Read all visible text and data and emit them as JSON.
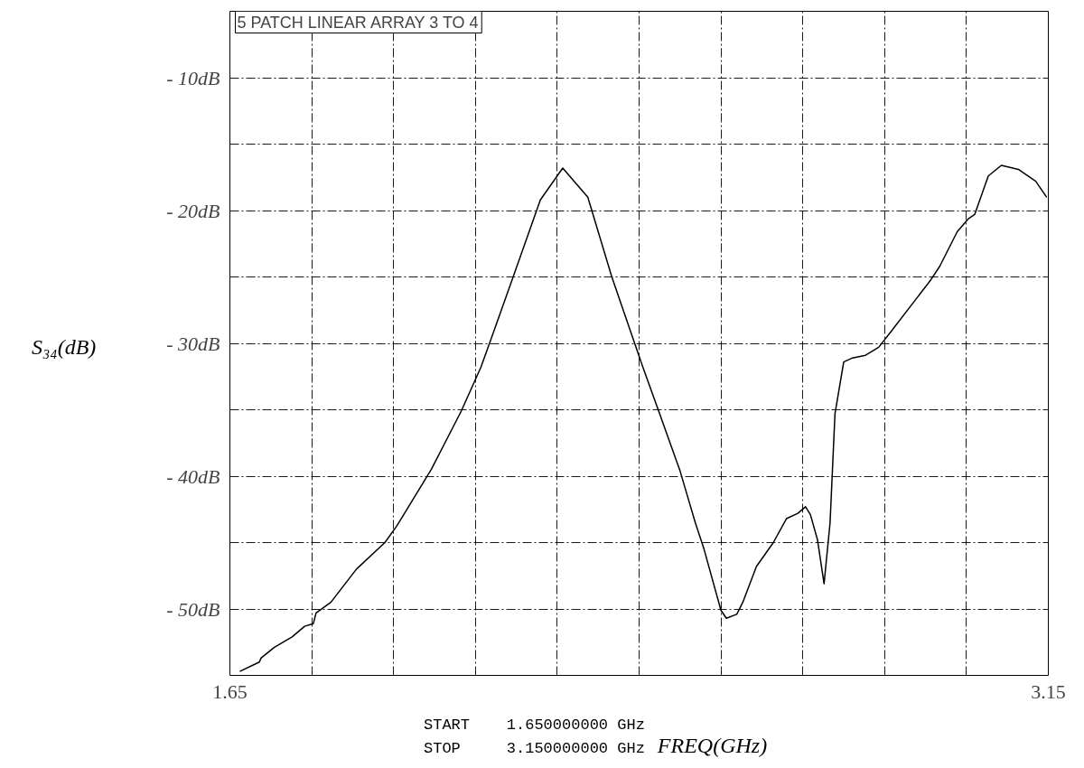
{
  "chart_data": {
    "type": "line",
    "title": "5 PATCH LINEAR ARRAY 3 TO 4",
    "xlabel": "FREQ(GHz)",
    "ylabel": "S₃₄(dB)",
    "annotations": [
      "START    1.650000000 GHz",
      "STOP     3.150000000 GHz"
    ],
    "xlim": [
      1.65,
      3.15
    ],
    "ylim": [
      -55,
      -5
    ],
    "xticks": [
      1.65,
      {
        "value": 1.8,
        "label": null
      },
      {
        "value": 1.95,
        "label": null
      },
      {
        "value": 2.1,
        "label": null
      },
      {
        "value": 2.25,
        "label": null
      },
      {
        "value": 2.4,
        "label": null
      },
      {
        "value": 2.55,
        "label": null
      },
      {
        "value": 2.7,
        "label": null
      },
      {
        "value": 2.85,
        "label": null
      },
      {
        "value": 3.0,
        "label": null
      },
      3.15
    ],
    "yticks": [
      {
        "value": -10,
        "label": "- 10dB"
      },
      {
        "value": -15,
        "label": null
      },
      {
        "value": -20,
        "label": "- 20dB"
      },
      {
        "value": -25,
        "label": null
      },
      {
        "value": -30,
        "label": "- 30dB"
      },
      {
        "value": -35,
        "label": null
      },
      {
        "value": -40,
        "label": "- 40dB"
      },
      {
        "value": -45,
        "label": null
      },
      {
        "value": -50,
        "label": "- 50dB"
      }
    ],
    "grid": true,
    "line_style": "solid",
    "series": [
      {
        "color": "#000000",
        "x": [
          1.668,
          1.704,
          1.707,
          1.731,
          1.764,
          1.787,
          1.803,
          1.808,
          1.835,
          1.882,
          1.934,
          1.955,
          1.964,
          2.019,
          2.074,
          2.11,
          2.131,
          2.17,
          2.219,
          2.26,
          2.306,
          2.35,
          2.391,
          2.407,
          2.435,
          2.475,
          2.503,
          2.519,
          2.55,
          2.56,
          2.579,
          2.59,
          2.615,
          2.646,
          2.67,
          2.691,
          2.705,
          2.714,
          2.727,
          2.739,
          2.75,
          2.759,
          2.775,
          2.791,
          2.815,
          2.839,
          2.862,
          2.935,
          2.951,
          2.983,
          3.004,
          3.015,
          3.04,
          3.064,
          3.095,
          3.127,
          3.147
        ],
        "values": [
          -54.7,
          -54.0,
          -53.7,
          -52.9,
          -52.1,
          -51.3,
          -51.1,
          -50.3,
          -49.5,
          -47.0,
          -45.0,
          -43.8,
          -43.2,
          -39.5,
          -35.1,
          -31.8,
          -29.4,
          -24.9,
          -19.2,
          -16.8,
          -19.0,
          -25.0,
          -29.9,
          -31.8,
          -35.0,
          -39.6,
          -43.5,
          -45.5,
          -50.1,
          -50.7,
          -50.4,
          -49.5,
          -46.8,
          -45.0,
          -43.2,
          -42.8,
          -42.3,
          -42.9,
          -44.8,
          -48.1,
          -43.5,
          -35.3,
          -31.4,
          -31.1,
          -30.9,
          -30.3,
          -29.1,
          -25.2,
          -24.2,
          -21.6,
          -20.6,
          -20.3,
          -17.4,
          -16.6,
          -16.9,
          -17.8,
          -19.0
        ]
      }
    ]
  }
}
